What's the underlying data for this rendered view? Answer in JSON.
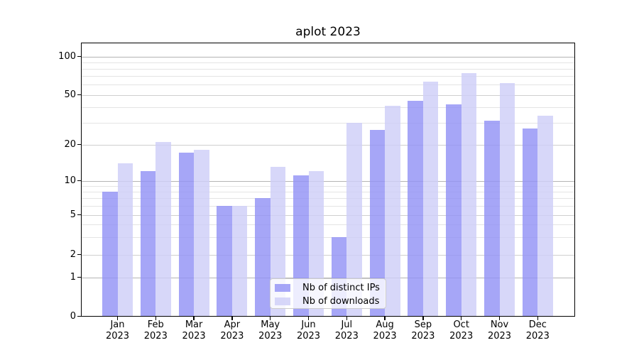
{
  "title": "aplot 2023",
  "chart_data": {
    "type": "bar",
    "title": "aplot 2023",
    "categories": [
      "Jan 2023",
      "Feb 2023",
      "Mar 2023",
      "Apr 2023",
      "May 2023",
      "Jun 2023",
      "Jul 2023",
      "Aug 2023",
      "Sep 2023",
      "Oct 2023",
      "Nov 2023",
      "Dec 2023"
    ],
    "series": [
      {
        "name": "Nb of distinct IPs",
        "color": "rgba(146,146,245,0.82)",
        "values": [
          8,
          12,
          17,
          6,
          7,
          11,
          3,
          26,
          45,
          42,
          31,
          27
        ]
      },
      {
        "name": "Nb of downloads",
        "color": "rgba(206,206,248,0.82)",
        "values": [
          14,
          21,
          18,
          6,
          13,
          12,
          30,
          41,
          63,
          74,
          62,
          34
        ]
      }
    ],
    "xlabel": "",
    "ylabel": "",
    "yscale": "symlog",
    "ylim": [
      0,
      130
    ],
    "yticks_labeled": [
      0,
      1,
      2,
      5,
      10,
      20,
      50,
      100
    ],
    "yticks_decade": [
      1,
      10,
      100
    ],
    "yticks_mid": [
      2,
      5,
      20,
      50
    ],
    "yticks_minor": [
      3,
      4,
      6,
      7,
      8,
      9,
      30,
      40,
      60,
      70,
      80,
      90
    ],
    "grid": true,
    "legend_position": "lower center"
  },
  "legend": {
    "items": [
      {
        "label": "Nb of distinct IPs",
        "color": "rgba(146,146,245,0.82)"
      },
      {
        "label": "Nb of downloads",
        "color": "rgba(206,206,248,0.82)"
      }
    ]
  },
  "colors": {
    "background": "#ffffff",
    "axis": "#000000",
    "grid_major": "#b4b4b4",
    "grid_labeled": "#cfcfcf",
    "grid_minor": "#e4e4e4",
    "bar_distinct_ips": "rgba(146,146,245,0.82)",
    "bar_downloads": "rgba(206,206,248,0.82)",
    "legend_border": "#cccccc"
  }
}
